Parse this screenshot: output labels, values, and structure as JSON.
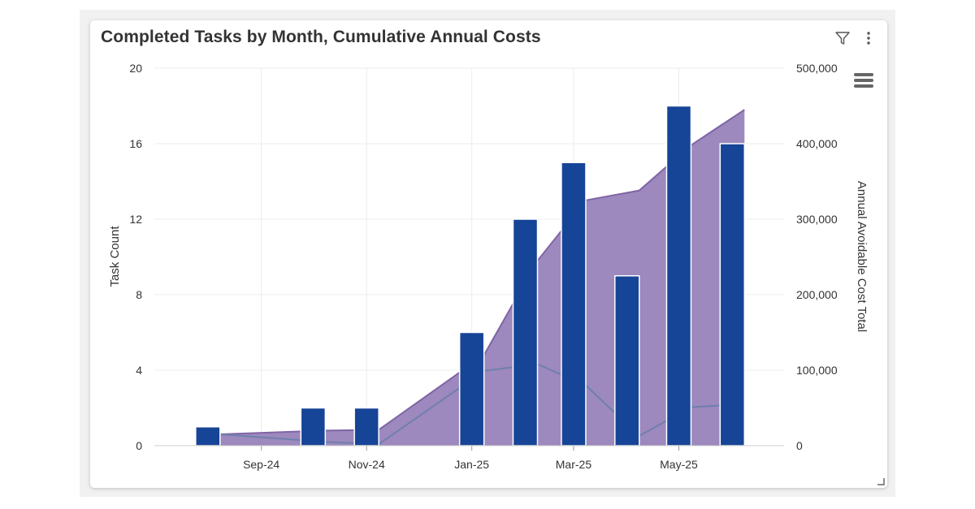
{
  "widget": {
    "title": "Completed Tasks by Month, Cumulative Annual Costs",
    "icons": [
      "filter-icon",
      "more-options-icon",
      "chart-menu-icon",
      "resize-handle-icon"
    ]
  },
  "colors": {
    "bar": "#164497",
    "area_fill": "#9d89be",
    "area_stroke": "#7f64a6",
    "line": "#6f7fad",
    "grid": "#ececec",
    "text": "#333333"
  },
  "chart_data": {
    "type": "bar",
    "title": "Completed Tasks by Month, Cumulative Annual Costs",
    "ylabel": "Task Count",
    "y2label": "Annual Avoidable Cost Total",
    "ylim": [
      0,
      20
    ],
    "y2lim": [
      0,
      500000
    ],
    "yticks": [
      0,
      4,
      8,
      12,
      16,
      20
    ],
    "yticklabels": [
      "0",
      "4",
      "8",
      "12",
      "16",
      "20"
    ],
    "y2ticks": [
      0,
      100000,
      200000,
      300000,
      400000,
      500000
    ],
    "y2ticklabels": [
      "0",
      "100,000",
      "200,000",
      "300,000",
      "400,000",
      "500,000"
    ],
    "x_range": [
      "2024-07-14",
      "2025-07-14"
    ],
    "xtick_dates": [
      "2024-09-14",
      "2024-11-14",
      "2025-01-14",
      "2025-03-14",
      "2025-05-14"
    ],
    "xticklabels": [
      "Sep-24",
      "Nov-24",
      "Jan-25",
      "Mar-25",
      "May-25"
    ],
    "grid": true,
    "series": [
      {
        "type": "bar",
        "axis": "left",
        "dates": [
          "2024-08-14",
          "2024-10-14",
          "2024-11-14",
          "2025-01-14",
          "2025-02-14",
          "2025-03-14",
          "2025-04-14",
          "2025-05-14",
          "2025-06-14"
        ],
        "values": [
          1,
          2,
          2,
          6,
          12,
          15,
          9,
          18,
          16
        ]
      },
      {
        "type": "area",
        "axis": "right",
        "dates": [
          "2024-08-14",
          "2024-10-14",
          "2024-11-14",
          "2025-01-14",
          "2025-02-14",
          "2025-03-14",
          "2025-04-14",
          "2025-05-14",
          "2025-06-14"
        ],
        "values": [
          15000,
          20000,
          21000,
          120000,
          245000,
          325000,
          338000,
          398000,
          445000
        ]
      },
      {
        "type": "line",
        "axis": "right",
        "dates": [
          "2024-08-14",
          "2024-10-14",
          "2024-11-14",
          "2025-01-14",
          "2025-02-14",
          "2025-03-14",
          "2025-04-14",
          "2025-05-14",
          "2025-06-14"
        ],
        "values": [
          15000,
          5000,
          2000,
          99000,
          108000,
          80000,
          13000,
          51000,
          55000
        ]
      }
    ]
  }
}
